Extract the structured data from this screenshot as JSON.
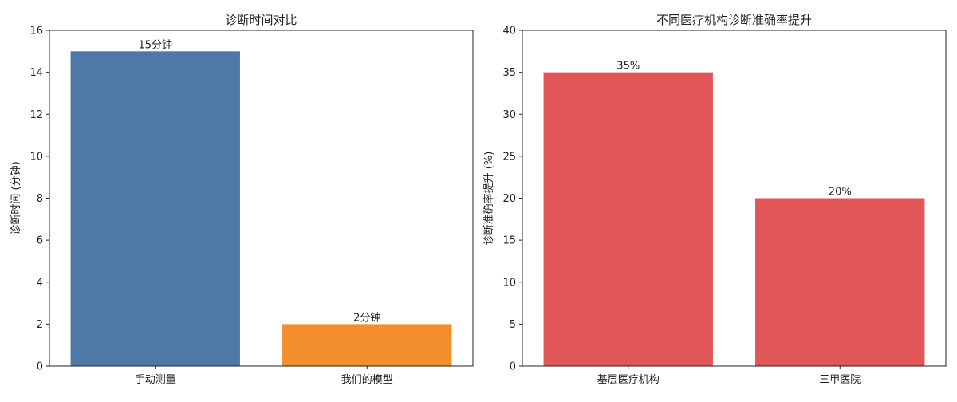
{
  "chart_data": [
    {
      "type": "bar",
      "title": "诊断时间对比",
      "xlabel": "",
      "ylabel": "诊断时间 (分钟)",
      "categories": [
        "手动测量",
        "我们的模型"
      ],
      "values": [
        15,
        2
      ],
      "data_labels": [
        "15分钟",
        "2分钟"
      ],
      "colors": [
        "#4e79a7",
        "#f28e2b"
      ],
      "ylim": [
        0,
        16
      ],
      "yticks": [
        0,
        2,
        4,
        6,
        8,
        10,
        12,
        14,
        16
      ],
      "grid": false,
      "legend": "none"
    },
    {
      "type": "bar",
      "title": "不同医疗机构诊断准确率提升",
      "xlabel": "",
      "ylabel": "诊断准确率提升 (%)",
      "categories": [
        "基层医疗机构",
        "三甲医院"
      ],
      "values": [
        35,
        20
      ],
      "data_labels": [
        "35%",
        "20%"
      ],
      "colors": [
        "#e15759",
        "#e15759"
      ],
      "ylim": [
        0,
        40
      ],
      "yticks": [
        0,
        5,
        10,
        15,
        20,
        25,
        30,
        35,
        40
      ],
      "grid": false,
      "legend": "none"
    }
  ]
}
